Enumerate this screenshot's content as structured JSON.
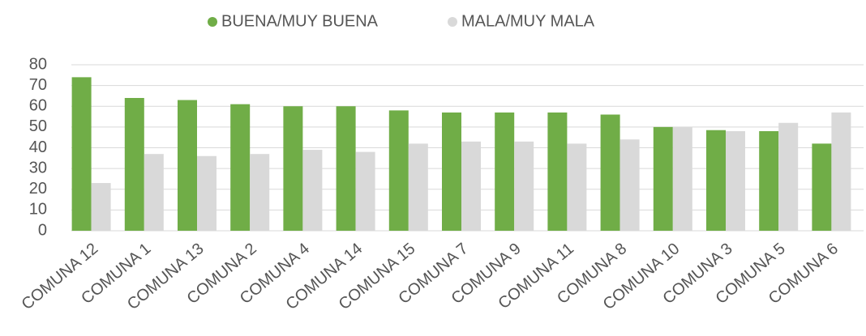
{
  "chart_data": {
    "type": "bar",
    "categories": [
      "COMUNA 12",
      "COMUNA 1",
      "COMUNA 13",
      "COMUNA 2",
      "COMUNA 4",
      "COMUNA 14",
      "COMUNA 15",
      "COMUNA 7",
      "COMUNA 9",
      "COMUNA 11",
      "COMUNA 8",
      "COMUNA 10",
      "COMUNA 3",
      "COMUNA 5",
      "COMUNA 6"
    ],
    "series": [
      {
        "name": "BUENA/MUY BUENA",
        "color": "#70ad47",
        "values": [
          74,
          64,
          63,
          61,
          60,
          60,
          58,
          57,
          57,
          57,
          56,
          50,
          48.5,
          48,
          42
        ]
      },
      {
        "name": "MALA/MUY MALA",
        "color": "#d9d9d9",
        "values": [
          23,
          37,
          36,
          37,
          39,
          38,
          42,
          43,
          43,
          42,
          44,
          50,
          48,
          52,
          57
        ]
      }
    ],
    "ylim": [
      0,
      80
    ],
    "yticks": [
      0,
      10,
      20,
      30,
      40,
      50,
      60,
      70,
      80
    ],
    "grid": true,
    "legend": "top"
  }
}
